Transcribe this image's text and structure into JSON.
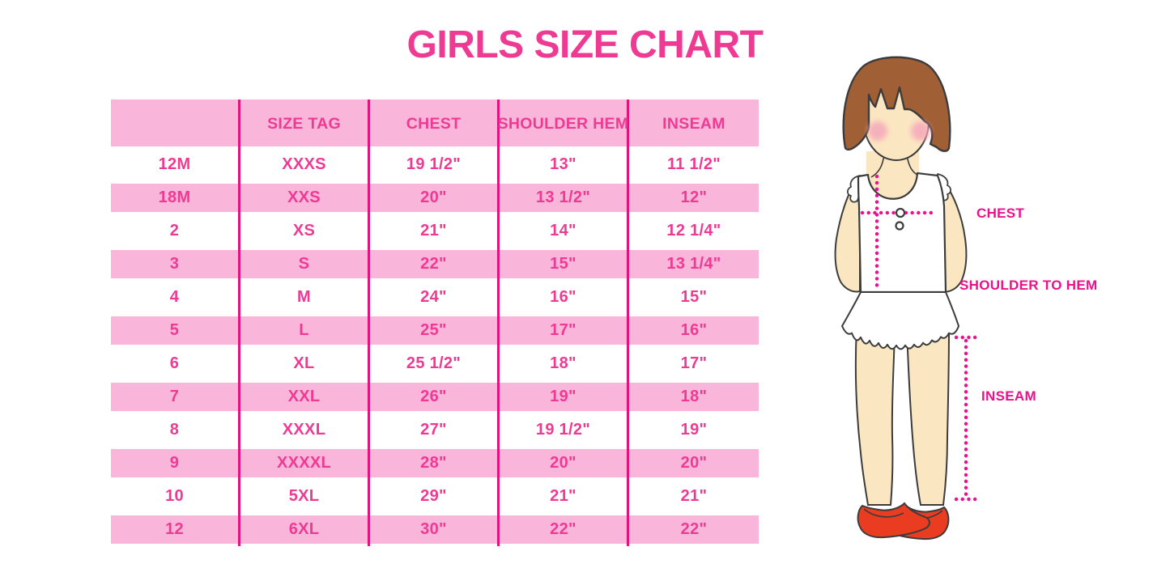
{
  "page": {
    "title": "GIRLS SIZE CHART"
  },
  "chart_data": {
    "type": "table",
    "title": "GIRLS SIZE CHART",
    "columns": [
      "",
      "SIZE TAG",
      "CHEST",
      "SHOULDER HEM",
      "INSEAM"
    ],
    "rows": [
      [
        "12M",
        "XXXS",
        "19 1/2\"",
        "13\"",
        "11 1/2\""
      ],
      [
        "18M",
        "XXS",
        "20\"",
        "13 1/2\"",
        "12\""
      ],
      [
        "2",
        "XS",
        "21\"",
        "14\"",
        "12 1/4\""
      ],
      [
        "3",
        "S",
        "22\"",
        "15\"",
        "13 1/4\""
      ],
      [
        "4",
        "M",
        "24\"",
        "16\"",
        "15\""
      ],
      [
        "5",
        "L",
        "25\"",
        "17\"",
        "16\""
      ],
      [
        "6",
        "XL",
        "25 1/2\"",
        "18\"",
        "17\""
      ],
      [
        "7",
        "XXL",
        "26\"",
        "19\"",
        "18\""
      ],
      [
        "8",
        "XXXL",
        "27\"",
        "19 1/2\"",
        "19\""
      ],
      [
        "9",
        "XXXXL",
        "28\"",
        "20\"",
        "20\""
      ],
      [
        "10",
        "5XL",
        "29\"",
        "21\"",
        "21\""
      ],
      [
        "12",
        "6XL",
        "30\"",
        "22\"",
        "22\""
      ]
    ],
    "layout": {
      "striping": "alternating white and pink rows, pink header",
      "grid": "vertical magenta column lines only"
    }
  },
  "diagram": {
    "labels": {
      "chest": "CHEST",
      "shoulder_to_hem": "SHOULDER TO HEM",
      "inseam": "INSEAM"
    }
  },
  "colors": {
    "text_pink": "#EF3A94",
    "band_pink": "#F9B5DA",
    "grid_magenta": "#E2137F",
    "label_magenta": "#EC108C",
    "hair_brown": "#A15F35",
    "skin": "#FBE6C2",
    "blush": "#F5A8BA",
    "shoe_red": "#E93C20",
    "outline": "#3C3C3C"
  }
}
